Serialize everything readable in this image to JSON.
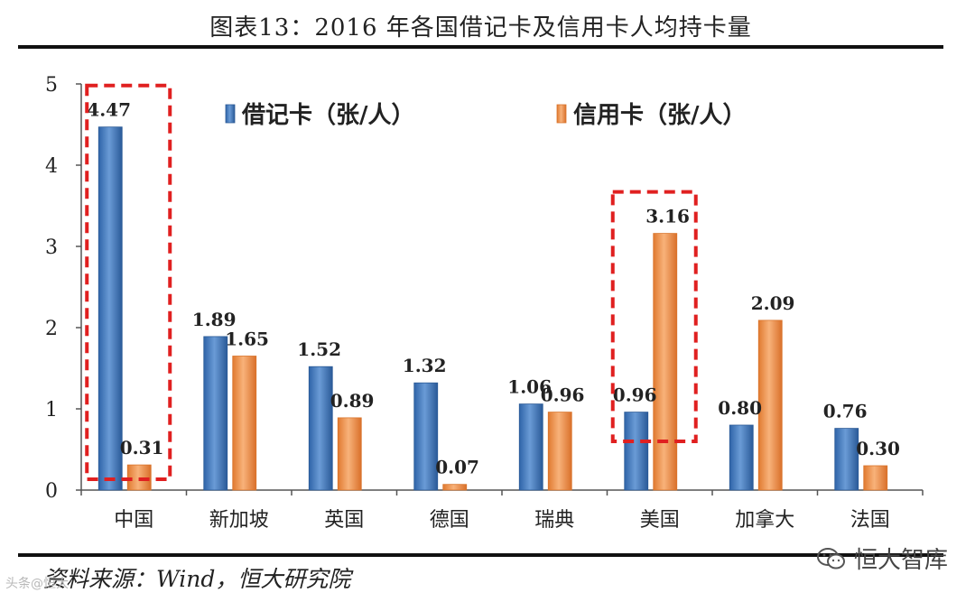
{
  "title": "图表13：2016 年各国借记卡及信用卡人均持卡量",
  "source": "资料来源：Wind，恒大研究院",
  "watermark": "恒大智库",
  "corner_watermark": "头条@恒大",
  "colors": {
    "debit": "#4a7fc1",
    "debit_dark": "#2b5a96",
    "credit": "#f09a55",
    "credit_dark": "#d9742b",
    "highlight": "#e02020"
  },
  "chart_data": {
    "type": "bar",
    "title": "图表13：2016 年各国借记卡及信用卡人均持卡量",
    "categories": [
      "中国",
      "新加坡",
      "英国",
      "德国",
      "瑞典",
      "美国",
      "加拿大",
      "法国"
    ],
    "series": [
      {
        "name": "借记卡（张/人）",
        "values": [
          4.47,
          1.89,
          1.52,
          1.32,
          1.06,
          0.96,
          0.8,
          0.76
        ],
        "labels": [
          "4.47",
          "1.89",
          "1.52",
          "1.32",
          "1.06",
          "0.96",
          "0.80",
          "0.76"
        ]
      },
      {
        "name": "信用卡（张/人）",
        "values": [
          0.31,
          1.65,
          0.89,
          0.07,
          0.96,
          3.16,
          2.09,
          0.3
        ],
        "labels": [
          "0.31",
          "1.65",
          "0.89",
          "0.07",
          "0.96",
          "3.16",
          "2.09",
          "0.30"
        ]
      }
    ],
    "ylim": [
      0,
      5
    ],
    "yticks": [
      "0",
      "1",
      "2",
      "3",
      "4",
      "5"
    ],
    "xlabel": "",
    "ylabel": "",
    "legend_position": "top",
    "grid": false,
    "highlighted_categories": [
      "中国",
      "美国"
    ]
  }
}
